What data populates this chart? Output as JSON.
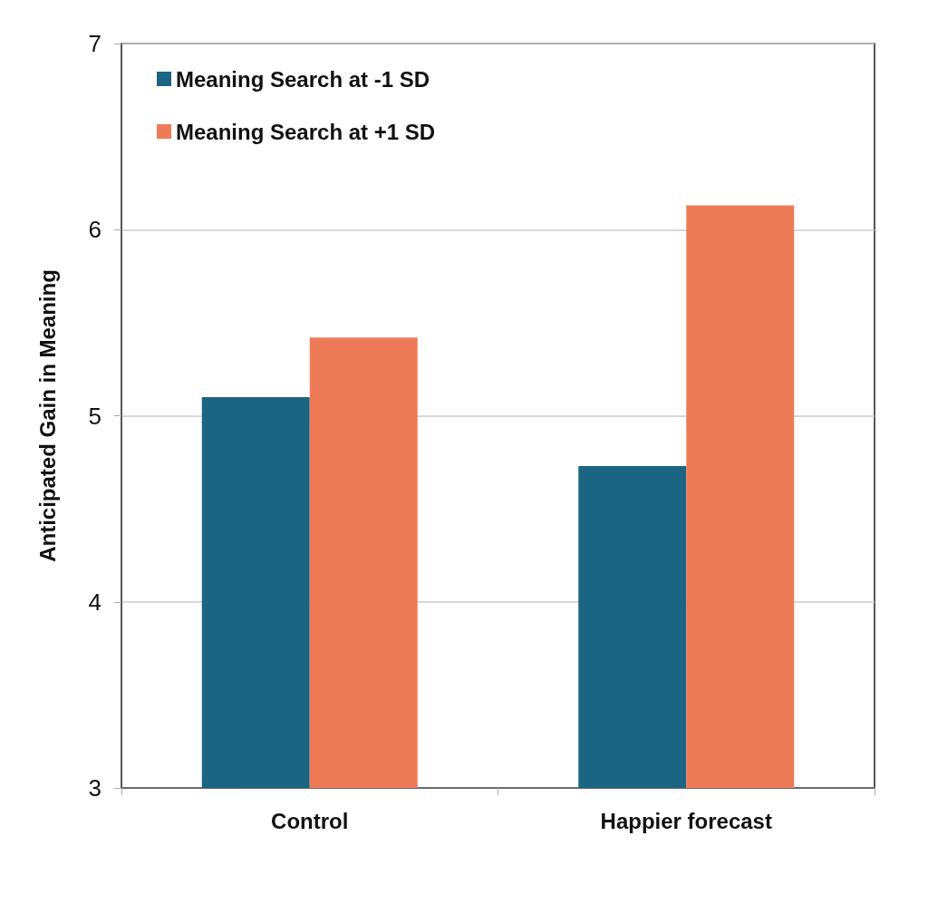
{
  "chart_data": {
    "type": "bar",
    "ylabel": "Anticipated Gain in Meaning",
    "categories": [
      "Control",
      "Happier forecast"
    ],
    "series": [
      {
        "name": "Meaning Search at -1 SD",
        "color": "#1b6482",
        "values": [
          5.1,
          4.73
        ]
      },
      {
        "name": "Meaning Search at +1 SD",
        "color": "#ee7b58",
        "values": [
          5.42,
          6.13
        ]
      }
    ],
    "ylim": [
      3,
      7
    ],
    "yticks": [
      3,
      4,
      5,
      6,
      7
    ],
    "grid": "y",
    "legend": "top left"
  }
}
